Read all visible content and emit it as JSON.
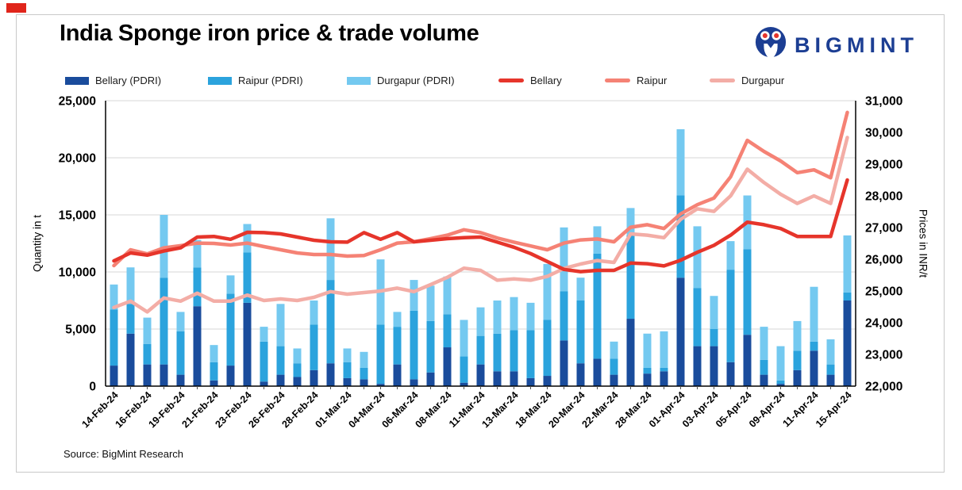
{
  "header": {
    "title": "India Sponge iron price & trade volume",
    "brand": "BIGMINT"
  },
  "legend": {
    "items": [
      {
        "label": "Bellary (PDRI)",
        "color": "#1a4c9c",
        "type": "bar"
      },
      {
        "label": "Raipur (PDRI)",
        "color": "#2ba3dd",
        "type": "bar"
      },
      {
        "label": "Durgapur (PDRI)",
        "color": "#74c9f0",
        "type": "bar"
      },
      {
        "label": "Bellary",
        "color": "#e6352b",
        "type": "line"
      },
      {
        "label": "Raipur",
        "color": "#f58275",
        "type": "line"
      },
      {
        "label": "Durgapur",
        "color": "#f3ada6",
        "type": "line"
      }
    ]
  },
  "source": "Source: BigMint Research",
  "chart_data": {
    "type": "combo-bar-line",
    "title": "India Sponge iron price & trade volume",
    "stacked_bars": true,
    "bars_count": 45,
    "label_every_n_bars": 2,
    "x_tick_labels": [
      "14-Feb-24",
      "16-Feb-24",
      "19-Feb-24",
      "21-Feb-24",
      "23-Feb-24",
      "26-Feb-24",
      "28-Feb-24",
      "01-Mar-24",
      "04-Mar-24",
      "06-Mar-24",
      "08-Mar-24",
      "11-Mar-24",
      "13-Mar-24",
      "18-Mar-24",
      "20-Mar-24",
      "22-Mar-24",
      "28-Mar-24",
      "01-Apr-24",
      "03-Apr-24",
      "05-Apr-24",
      "09-Apr-24",
      "11-Apr-24",
      "15-Apr-24"
    ],
    "left_axis": {
      "title": "Quantity in t",
      "min": 0,
      "max": 25000,
      "tick_step": 5000
    },
    "right_axis": {
      "title": "Prices in INR/t",
      "min": 22000,
      "max": 31000,
      "tick_step": 1000
    },
    "grid": "horizontal-left-axis-only",
    "legend_position": "top",
    "bar_series": [
      {
        "name": "Bellary (PDRI)",
        "color": "#1a4c9c",
        "values": [
          1800,
          4600,
          1900,
          1900,
          1000,
          7000,
          500,
          1800,
          7300,
          400,
          1000,
          800,
          1400,
          2000,
          700,
          600,
          200,
          1900,
          600,
          1200,
          3400,
          300,
          1900,
          1300,
          1300,
          700,
          900,
          4000,
          2000,
          2400,
          1000,
          5900,
          1100,
          1300,
          9500,
          3500,
          3500,
          2100,
          4500,
          1000,
          200,
          1400,
          3100,
          1000,
          7500
        ]
      },
      {
        "name": "Raipur (PDRI)",
        "color": "#2ba3dd",
        "values": [
          4900,
          2600,
          1800,
          7600,
          3800,
          3400,
          1600,
          6300,
          4400,
          3500,
          2500,
          1200,
          4000,
          7300,
          1400,
          1000,
          5200,
          3300,
          6000,
          4500,
          2900,
          2300,
          2500,
          3300,
          3600,
          4200,
          4900,
          4300,
          5500,
          9200,
          1400,
          7300,
          500,
          300,
          7200,
          5100,
          1500,
          8100,
          7500,
          1300,
          300,
          1700,
          800,
          900,
          700
        ]
      },
      {
        "name": "Durgapur (PDRI)",
        "color": "#74c9f0",
        "values": [
          2200,
          3200,
          2300,
          5500,
          1700,
          2400,
          1500,
          1600,
          2500,
          1300,
          3700,
          1300,
          2100,
          5400,
          1200,
          1400,
          5700,
          1300,
          2700,
          3100,
          3300,
          3200,
          2500,
          2900,
          2900,
          2400,
          4900,
          5600,
          2000,
          2400,
          1500,
          2400,
          3000,
          3200,
          5800,
          5400,
          2900,
          2500,
          4700,
          2900,
          3000,
          2600,
          4800,
          2200,
          5000
        ]
      }
    ],
    "line_series": [
      {
        "name": "Bellary",
        "color": "#e6352b",
        "values": [
          25950,
          26200,
          26130,
          26260,
          26360,
          26700,
          26720,
          26630,
          26850,
          26840,
          26800,
          26700,
          26600,
          26550,
          26540,
          26840,
          26630,
          26840,
          26550,
          26600,
          26650,
          26680,
          26700,
          26540,
          26380,
          26180,
          25930,
          25680,
          25610,
          25650,
          25650,
          25880,
          25860,
          25790,
          25970,
          26220,
          26440,
          26760,
          27170,
          27090,
          26970,
          26720,
          26720,
          26720,
          28500
        ]
      },
      {
        "name": "Raipur",
        "color": "#f58275",
        "values": [
          25800,
          26300,
          26170,
          26360,
          26430,
          26510,
          26500,
          26450,
          26510,
          26400,
          26300,
          26200,
          26150,
          26150,
          26100,
          26120,
          26300,
          26510,
          26550,
          26650,
          26760,
          26930,
          26840,
          26670,
          26540,
          26420,
          26300,
          26510,
          26610,
          26640,
          26550,
          27010,
          27090,
          26970,
          27430,
          27720,
          27930,
          28600,
          29750,
          29400,
          29100,
          28730,
          28820,
          28570,
          30630
        ]
      },
      {
        "name": "Durgapur",
        "color": "#f3ada6",
        "values": [
          24480,
          24680,
          24340,
          24780,
          24680,
          24930,
          24680,
          24680,
          24870,
          24700,
          24750,
          24700,
          24800,
          24980,
          24900,
          24950,
          25000,
          25090,
          24980,
          25200,
          25430,
          25720,
          25650,
          25340,
          25380,
          25340,
          25460,
          25710,
          25850,
          25960,
          25900,
          26800,
          26760,
          26680,
          27260,
          27590,
          27510,
          28000,
          28840,
          28420,
          28050,
          27760,
          28000,
          27760,
          29840
        ]
      }
    ]
  }
}
